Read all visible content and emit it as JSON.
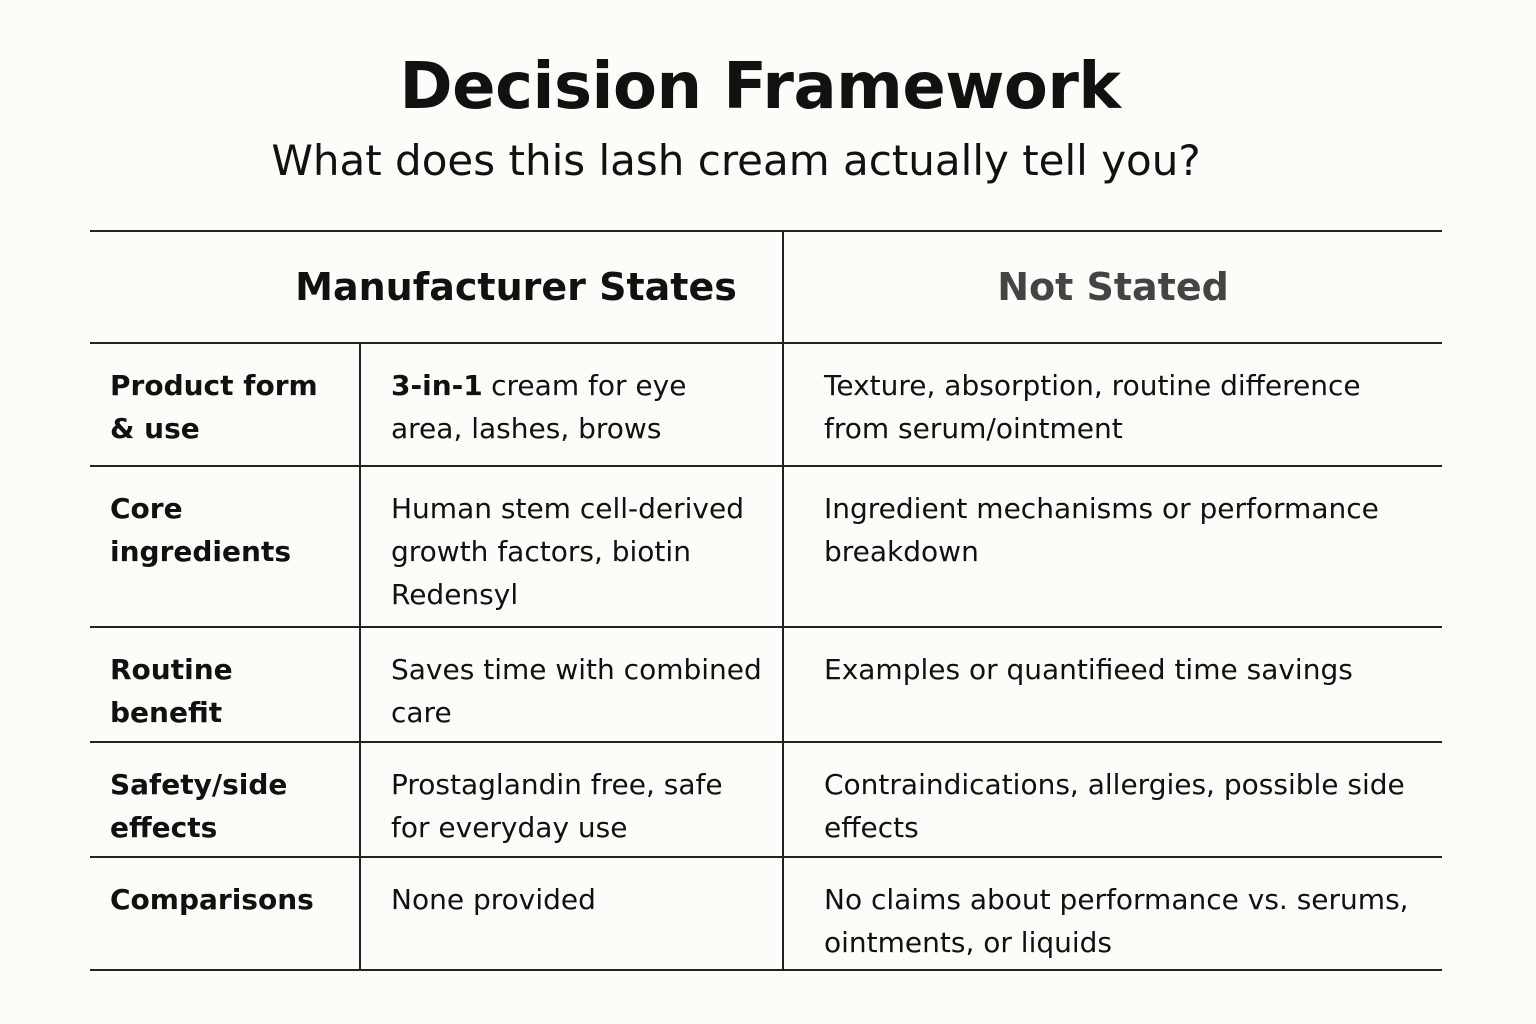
{
  "header": {
    "title": "Decision Framework",
    "subtitle": "What does this lash cream actually tell you?"
  },
  "table": {
    "columns": [
      "Manufacturer States",
      "Not Stated"
    ],
    "rows": [
      {
        "label": "Product form & use",
        "stated_lead": "3-in-1",
        "stated": "cream for eye area, lashes, brows",
        "not_stated": "Texture, absorption, routine difference from serum/ointment"
      },
      {
        "label": "Core ingredients",
        "stated": "Human stem cell-derived growth factors, biotin Redensyl",
        "not_stated": "Ingredient mechanisms or performance breakdown"
      },
      {
        "label": "Routine benefit",
        "stated": "Saves time with combined care",
        "not_stated": "Examples or quantifieed time savings"
      },
      {
        "label": "Safety/side effects",
        "stated": "Prostaglandin free, safe for everyday use",
        "not_stated": "Contraindications, allergies, possible side effects"
      },
      {
        "label": "Comparisons",
        "stated": "None provided",
        "not_stated": "No claims about performance vs. serums, ointments, or liquids"
      }
    ]
  }
}
